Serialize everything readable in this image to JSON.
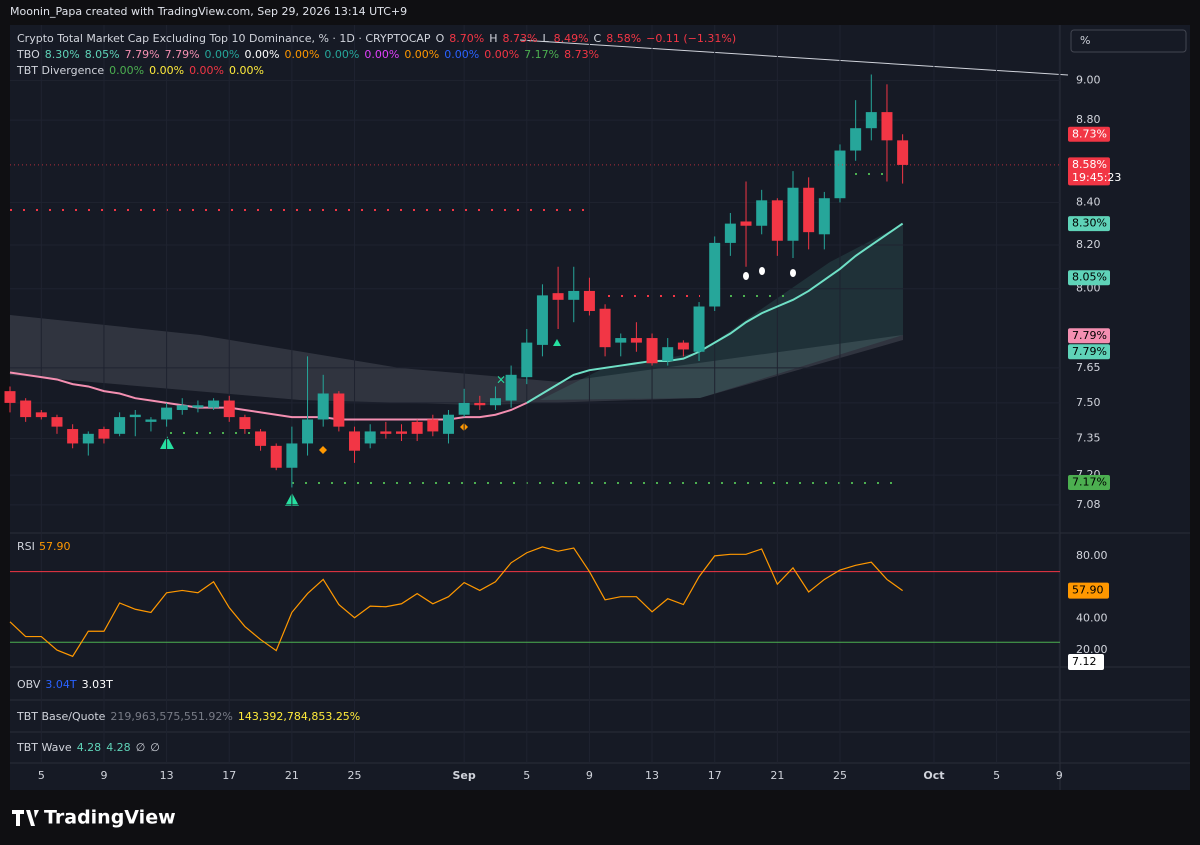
{
  "header": "Moonin_Papa created with TradingView.com, Sep 29, 2026 13:14 UTC+9",
  "brand": "TradingView",
  "unit_box": "%",
  "legend": [
    {
      "parts": [
        {
          "text": "Crypto Total Market Cap Excluding Top 10 Dominance, % · 1D · CRYPTOCAP",
          "color": "#d1d4dc"
        },
        {
          "text": "O",
          "color": "#d1d4dc"
        },
        {
          "text": "8.70%",
          "color": "#f23645"
        },
        {
          "text": "H",
          "color": "#d1d4dc"
        },
        {
          "text": "8.73%",
          "color": "#f23645"
        },
        {
          "text": "L",
          "color": "#d1d4dc"
        },
        {
          "text": "8.49%",
          "color": "#f23645"
        },
        {
          "text": "C",
          "color": "#d1d4dc"
        },
        {
          "text": "8.58%",
          "color": "#f23645"
        },
        {
          "text": "−0.11 (−1.31%)",
          "color": "#f23645"
        }
      ]
    },
    {
      "parts": [
        {
          "text": "TBO",
          "color": "#d1d4dc"
        },
        {
          "text": "8.30%",
          "color": "#5fd3b8"
        },
        {
          "text": "8.05%",
          "color": "#5fd3b8"
        },
        {
          "text": "7.79%",
          "color": "#f48fb1"
        },
        {
          "text": "7.79%",
          "color": "#f48fb1"
        },
        {
          "text": "0.00%",
          "color": "#26a69a"
        },
        {
          "text": "0.00%",
          "color": "#ffffff"
        },
        {
          "text": "0.00%",
          "color": "#ff9800"
        },
        {
          "text": "0.00%",
          "color": "#26a69a"
        },
        {
          "text": "0.00%",
          "color": "#e040fb"
        },
        {
          "text": "0.00%",
          "color": "#ff9800"
        },
        {
          "text": "0.00%",
          "color": "#2962ff"
        },
        {
          "text": "0.00%",
          "color": "#f23645"
        },
        {
          "text": "7.17%",
          "color": "#4caf50"
        },
        {
          "text": "8.73%",
          "color": "#f23645"
        }
      ]
    },
    {
      "parts": [
        {
          "text": "TBT Divergence",
          "color": "#d1d4dc"
        },
        {
          "text": "0.00%",
          "color": "#4caf50"
        },
        {
          "text": "0.00%",
          "color": "#ffeb3b"
        },
        {
          "text": "0.00%",
          "color": "#f23645"
        },
        {
          "text": "0.00%",
          "color": "#ffeb3b"
        }
      ]
    }
  ],
  "indicators": [
    {
      "parts": [
        {
          "text": "OBV",
          "color": "#d1d4dc"
        },
        {
          "text": "3.04T",
          "color": "#2962ff"
        },
        {
          "text": "3.03T",
          "color": "#ffffff"
        }
      ]
    },
    {
      "parts": [
        {
          "text": "TBT Base/Quote",
          "color": "#d1d4dc"
        },
        {
          "text": "219,963,575,551.92%",
          "color": "#787b86"
        },
        {
          "text": "143,392,784,853.25%",
          "color": "#ffeb3b"
        }
      ]
    },
    {
      "parts": [
        {
          "text": "TBT Wave",
          "color": "#d1d4dc"
        },
        {
          "text": "4.28",
          "color": "#5fd3b8"
        },
        {
          "text": "4.28",
          "color": "#5fd3b8"
        },
        {
          "text": "∅",
          "color": "#d1d4dc"
        },
        {
          "text": "∅",
          "color": "#d1d4dc"
        }
      ]
    }
  ],
  "chart_data": [
    {
      "type": "candlestick",
      "log_scale": true,
      "up_color": "#26a69a",
      "down_color": "#f23645",
      "categories": [
        "2026-08-03",
        "2026-08-04",
        "2026-08-05",
        "2026-08-06",
        "2026-08-07",
        "2026-08-08",
        "2026-08-09",
        "2026-08-10",
        "2026-08-11",
        "2026-08-12",
        "2026-08-13",
        "2026-08-14",
        "2026-08-15",
        "2026-08-16",
        "2026-08-17",
        "2026-08-18",
        "2026-08-19",
        "2026-08-20",
        "2026-08-21",
        "2026-08-22",
        "2026-08-23",
        "2026-08-24",
        "2026-08-25",
        "2026-08-26",
        "2026-08-27",
        "2026-08-28",
        "2026-08-29",
        "2026-08-30",
        "2026-08-31",
        "2026-09-01",
        "2026-09-02",
        "2026-09-03",
        "2026-09-04",
        "2026-09-05",
        "2026-09-06",
        "2026-09-07",
        "2026-09-08",
        "2026-09-09",
        "2026-09-10",
        "2026-09-11",
        "2026-09-12",
        "2026-09-13",
        "2026-09-14",
        "2026-09-15",
        "2026-09-16",
        "2026-09-17",
        "2026-09-18",
        "2026-09-19",
        "2026-09-20",
        "2026-09-21",
        "2026-09-22",
        "2026-09-23",
        "2026-09-24",
        "2026-09-25",
        "2026-09-26",
        "2026-09-27",
        "2026-09-28",
        "2026-09-29"
      ],
      "open": [
        7.55,
        7.51,
        7.46,
        7.44,
        7.39,
        7.33,
        7.39,
        7.37,
        7.44,
        7.42,
        7.43,
        7.47,
        7.48,
        7.48,
        7.51,
        7.44,
        7.38,
        7.32,
        7.23,
        7.33,
        7.43,
        7.54,
        7.38,
        7.33,
        7.38,
        7.38,
        7.42,
        7.43,
        7.37,
        7.45,
        7.5,
        7.49,
        7.51,
        7.61,
        7.75,
        7.98,
        7.95,
        7.99,
        7.91,
        7.76,
        7.78,
        7.78,
        7.68,
        7.76,
        7.72,
        7.92,
        8.21,
        8.31,
        8.29,
        8.41,
        8.22,
        8.47,
        8.25,
        8.42,
        8.65,
        8.76,
        8.84,
        8.7
      ],
      "high": [
        7.57,
        7.52,
        7.47,
        7.45,
        7.41,
        7.38,
        7.4,
        7.46,
        7.47,
        7.44,
        7.5,
        7.52,
        7.51,
        7.52,
        7.53,
        7.45,
        7.39,
        7.33,
        7.4,
        7.7,
        7.62,
        7.55,
        7.4,
        7.41,
        7.42,
        7.41,
        7.43,
        7.45,
        7.47,
        7.56,
        7.53,
        7.57,
        7.66,
        7.82,
        8.02,
        8.1,
        8.1,
        8.05,
        7.93,
        7.8,
        7.85,
        7.8,
        7.78,
        7.77,
        7.94,
        8.24,
        8.35,
        8.5,
        8.46,
        8.42,
        8.55,
        8.52,
        8.45,
        8.68,
        8.9,
        9.03,
        8.98,
        8.73
      ],
      "low": [
        7.46,
        7.42,
        7.43,
        7.37,
        7.31,
        7.28,
        7.33,
        7.36,
        7.36,
        7.38,
        7.4,
        7.45,
        7.46,
        7.47,
        7.42,
        7.37,
        7.3,
        7.22,
        7.15,
        7.28,
        7.4,
        7.38,
        7.25,
        7.31,
        7.35,
        7.34,
        7.34,
        7.36,
        7.33,
        7.44,
        7.47,
        7.47,
        7.48,
        7.58,
        7.7,
        7.82,
        7.85,
        7.88,
        7.7,
        7.7,
        7.72,
        7.66,
        7.66,
        7.7,
        7.68,
        7.9,
        8.15,
        8.1,
        8.25,
        8.15,
        8.14,
        8.18,
        8.18,
        8.4,
        8.6,
        8.7,
        8.5,
        8.49
      ],
      "close": [
        7.5,
        7.44,
        7.44,
        7.4,
        7.33,
        7.37,
        7.35,
        7.44,
        7.45,
        7.43,
        7.48,
        7.49,
        7.49,
        7.51,
        7.44,
        7.39,
        7.32,
        7.23,
        7.33,
        7.43,
        7.54,
        7.4,
        7.3,
        7.38,
        7.37,
        7.37,
        7.37,
        7.38,
        7.45,
        7.5,
        7.49,
        7.52,
        7.62,
        7.76,
        7.97,
        7.95,
        7.99,
        7.9,
        7.74,
        7.78,
        7.76,
        7.67,
        7.74,
        7.73,
        7.92,
        8.21,
        8.3,
        8.29,
        8.41,
        8.22,
        8.47,
        8.26,
        8.42,
        8.65,
        8.76,
        8.84,
        8.7,
        8.58
      ],
      "series": [
        {
          "color": "#f48fb1",
          "values": [
            7.63,
            7.62,
            7.61,
            7.6,
            7.58,
            7.57,
            7.55,
            7.54,
            7.52,
            7.51,
            7.5,
            7.49,
            7.48,
            7.48,
            7.48,
            7.47,
            7.46,
            7.45,
            7.44,
            7.44,
            7.44,
            7.43,
            7.43,
            7.43,
            7.43,
            7.43,
            7.43,
            7.43,
            7.43,
            7.44,
            7.44,
            7.45,
            7.47,
            7.5,
            null,
            null,
            null,
            null,
            null,
            null,
            null,
            null,
            null,
            null,
            null,
            null,
            null,
            null,
            null,
            null,
            null,
            null,
            null,
            null,
            null,
            null,
            null,
            null
          ]
        },
        {
          "color": "#6fe0c6",
          "values": [
            null,
            null,
            null,
            null,
            null,
            null,
            null,
            null,
            null,
            null,
            null,
            null,
            null,
            null,
            null,
            null,
            null,
            null,
            null,
            null,
            null,
            null,
            null,
            null,
            null,
            null,
            null,
            null,
            null,
            null,
            null,
            null,
            null,
            7.5,
            7.54,
            7.58,
            7.62,
            7.64,
            7.65,
            7.66,
            7.67,
            7.68,
            7.68,
            7.69,
            7.72,
            7.76,
            7.8,
            7.85,
            7.89,
            7.92,
            7.95,
            7.99,
            8.04,
            8.09,
            8.15,
            8.2,
            8.25,
            8.3
          ]
        }
      ],
      "ylim": [
        6.98,
        9.26
      ],
      "yticks": [
        {
          "value": 7.08,
          "label": "7.08"
        },
        {
          "value": 7.2,
          "label": "7.20"
        },
        {
          "value": 7.35,
          "label": "7.35"
        },
        {
          "value": 7.5,
          "label": "7.50"
        },
        {
          "value": 7.65,
          "label": "7.65"
        },
        {
          "value": 8,
          "label": "8.00"
        },
        {
          "value": 8.2,
          "label": "8.20"
        },
        {
          "value": 8.4,
          "label": "8.40"
        },
        {
          "value": 8.8,
          "label": "8.80"
        },
        {
          "value": 9,
          "label": "9.00"
        }
      ],
      "xticks": [
        {
          "value": "2026-08-05",
          "label": "5"
        },
        {
          "value": "2026-08-09",
          "label": "9"
        },
        {
          "value": "2026-08-13",
          "label": "13"
        },
        {
          "value": "2026-08-17",
          "label": "17"
        },
        {
          "value": "2026-08-21",
          "label": "21"
        },
        {
          "value": "2026-08-25",
          "label": "25"
        },
        {
          "value": "2026-09-01",
          "label": "Sep"
        },
        {
          "value": "2026-09-05",
          "label": "5"
        },
        {
          "value": "2026-09-09",
          "label": "9"
        },
        {
          "value": "2026-09-13",
          "label": "13"
        },
        {
          "value": "2026-09-17",
          "label": "17"
        },
        {
          "value": "2026-09-21",
          "label": "21"
        },
        {
          "value": "2026-09-25",
          "label": "25"
        },
        {
          "value": "2026-10-01",
          "label": "Oct"
        },
        {
          "value": "2026-10-05",
          "label": "5"
        },
        {
          "value": "2026-10-09",
          "label": "9"
        }
      ],
      "price_badges": [
        {
          "value": 8.73,
          "label": "8.73%",
          "color": "#f23645"
        },
        {
          "value": 8.58,
          "label": "8.58%",
          "color": "#f23645",
          "countdown": "19:45:23"
        },
        {
          "value": 8.3,
          "label": "8.30%",
          "color": "#5fd3b8"
        },
        {
          "value": 8.05,
          "label": "8.05%",
          "color": "#5fd3b8"
        },
        {
          "value": 7.79,
          "label": "7.79%",
          "color": "#f48fb1"
        },
        {
          "value": 7.79,
          "label": "7.79%",
          "color": "#5fd3b8"
        },
        {
          "value": 7.17,
          "label": "7.17%",
          "color": "#4caf50"
        }
      ],
      "grid": true
    },
    {
      "type": "line",
      "title": "RSI",
      "value_label": "57.90",
      "color": "#ff9800",
      "values": [
        38,
        28.6,
        28.6,
        20,
        16,
        32,
        32,
        50,
        46,
        44,
        56.5,
        58,
        56.5,
        63.5,
        47,
        35,
        26.7,
        19.7,
        44,
        56,
        65,
        49,
        40.6,
        48,
        47.6,
        49.5,
        56,
        49.5,
        54,
        63,
        58,
        63.5,
        75.6,
        82,
        85.7,
        83,
        85,
        70,
        52,
        54,
        54,
        44.4,
        52.7,
        49,
        66.7,
        80,
        81,
        81,
        84.4,
        62,
        72.4,
        57,
        65,
        71,
        74,
        76,
        65,
        57.9
      ],
      "ylim": [
        10.5,
        93.3
      ],
      "yticks": [
        {
          "value": 80,
          "label": "80.00"
        },
        {
          "value": 40,
          "label": "40.00"
        },
        {
          "value": 20,
          "label": "20.00"
        }
      ],
      "levels": [
        {
          "value": 70,
          "color": "#f23645"
        },
        {
          "value": 25,
          "color": "#4caf50"
        }
      ],
      "extra_badge": "7.12"
    }
  ]
}
